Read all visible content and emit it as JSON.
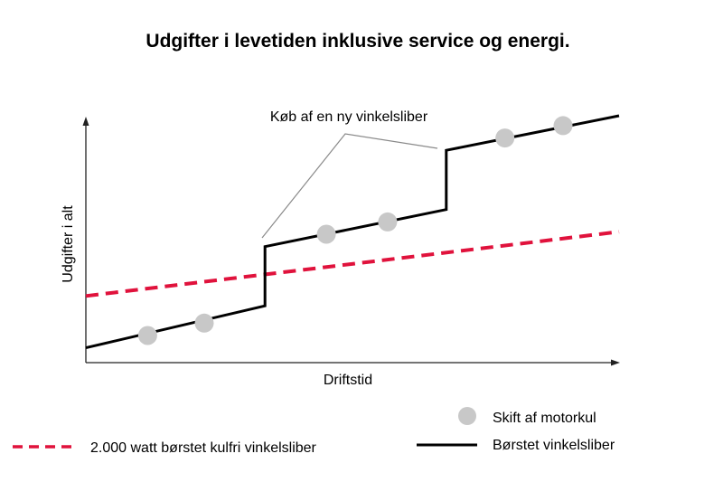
{
  "chart_data": {
    "type": "line",
    "title": "Udgifter i levetiden inklusive service og energi.",
    "xlabel": "Driftstid",
    "ylabel": "Udgifter i alt",
    "ticks": "none",
    "grid": false,
    "xlim": [
      0,
      100
    ],
    "ylim": [
      0,
      100
    ],
    "series": [
      {
        "name": "2.000 watt børstet kulfri vinkelsliber",
        "style": "dashed",
        "color": "#e0123c",
        "x": [
          0,
          100
        ],
        "y": [
          27,
          53
        ]
      },
      {
        "name": "Børstet vinkelsliber",
        "style": "solid",
        "color": "#000000",
        "x": [
          0,
          33.6,
          33.6,
          67.6,
          67.6,
          100
        ],
        "y": [
          6,
          23,
          47,
          62,
          86,
          100
        ]
      }
    ],
    "markers": {
      "name": "Skift af motorkul",
      "color": "#c8c8c8",
      "points": [
        {
          "x": 11.6,
          "y": 11
        },
        {
          "x": 22.2,
          "y": 16
        },
        {
          "x": 45.1,
          "y": 52
        },
        {
          "x": 56.6,
          "y": 57
        },
        {
          "x": 78.6,
          "y": 91
        },
        {
          "x": 89.5,
          "y": 96
        }
      ]
    },
    "annotation": {
      "text": "Køb af en ny vinkelsliber"
    },
    "legend": {
      "placement": "bottom"
    }
  }
}
